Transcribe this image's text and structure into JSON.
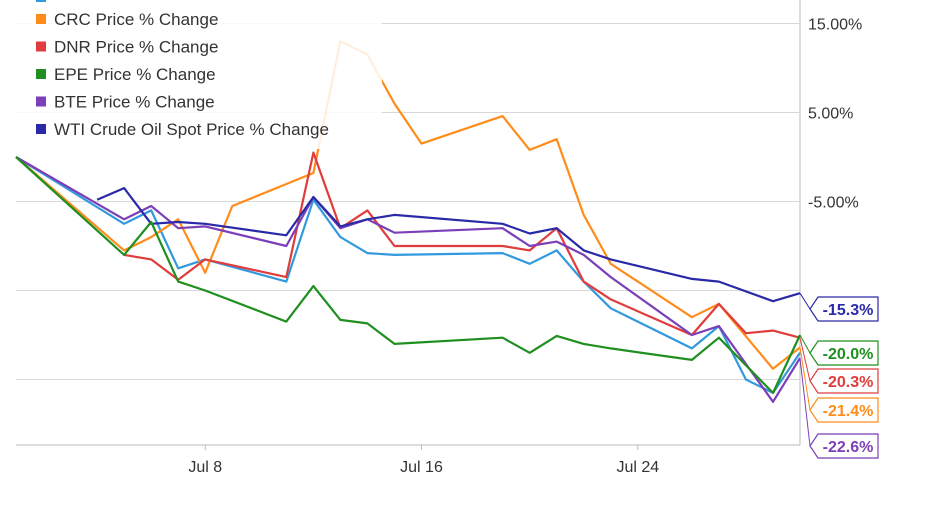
{
  "chart_data": {
    "type": "line",
    "x_ticks": [
      "Jul 8",
      "Jul 16",
      "Jul 24"
    ],
    "y_ticks": [
      "15.00%",
      "5.00%",
      "-5.00%"
    ],
    "ylim": [
      -30,
      20
    ],
    "grid": true,
    "legend_placement": "top-left",
    "series": [
      {
        "name": "CRC Price % Change",
        "color": "#ff8c1a",
        "end_label": "-21.4%",
        "points": [
          [
            0,
            0
          ],
          [
            4,
            -10.5
          ],
          [
            5,
            -9
          ],
          [
            6,
            -7
          ],
          [
            7,
            -13
          ],
          [
            8,
            -5.5
          ],
          [
            11,
            -1.8
          ],
          [
            12,
            13
          ],
          [
            13,
            11.5
          ],
          [
            14,
            6
          ],
          [
            15,
            1.5
          ],
          [
            18,
            4.6
          ],
          [
            19,
            0.8
          ],
          [
            20,
            2
          ],
          [
            21,
            -6.5
          ],
          [
            22,
            -12
          ],
          [
            25,
            -18
          ],
          [
            26,
            -16.5
          ],
          [
            28,
            -23.8
          ],
          [
            29,
            -21.4
          ]
        ]
      },
      {
        "name": "DNR Price % Change",
        "color": "#e03c3c",
        "end_label": "-20.3%",
        "points": [
          [
            4,
            -11
          ],
          [
            5,
            -11.5
          ],
          [
            6,
            -13.8
          ],
          [
            7,
            -11.5
          ],
          [
            10,
            -13.5
          ],
          [
            11,
            0.5
          ],
          [
            12,
            -8
          ],
          [
            13,
            -6
          ],
          [
            14,
            -10
          ],
          [
            18,
            -10
          ],
          [
            19,
            -10.5
          ],
          [
            20,
            -8
          ],
          [
            21,
            -14
          ],
          [
            22,
            -16
          ],
          [
            25,
            -20
          ],
          [
            26,
            -16.5
          ],
          [
            27,
            -19.8
          ],
          [
            28,
            -19.5
          ],
          [
            29,
            -20.3
          ]
        ]
      },
      {
        "name": "EPE Price % Change",
        "color": "#1f8f1f",
        "end_label": "-20.0%",
        "points": [
          [
            0,
            0
          ],
          [
            4,
            -11
          ],
          [
            5,
            -7.3
          ],
          [
            6,
            -14
          ],
          [
            7,
            -15
          ],
          [
            10,
            -18.5
          ],
          [
            11,
            -14.5
          ],
          [
            12,
            -18.3
          ],
          [
            13,
            -18.7
          ],
          [
            14,
            -21
          ],
          [
            18,
            -20.3
          ],
          [
            19,
            -22
          ],
          [
            20,
            -20.1
          ],
          [
            21,
            -21
          ],
          [
            22,
            -21.5
          ],
          [
            25,
            -22.8
          ],
          [
            26,
            -20.3
          ],
          [
            28,
            -26.5
          ],
          [
            29,
            -20
          ]
        ]
      },
      {
        "name": "BTE Price % Change",
        "color": "#7b3fb8",
        "end_label": "-22.6%",
        "points": [
          [
            0,
            0
          ],
          [
            4,
            -7
          ],
          [
            5,
            -5.5
          ],
          [
            6,
            -8
          ],
          [
            7,
            -7.8
          ],
          [
            10,
            -10
          ],
          [
            11,
            -4.5
          ],
          [
            12,
            -8
          ],
          [
            13,
            -7
          ],
          [
            14,
            -8.5
          ],
          [
            18,
            -8
          ],
          [
            19,
            -10
          ],
          [
            20,
            -9.5
          ],
          [
            21,
            -11
          ],
          [
            22,
            -13.5
          ],
          [
            25,
            -20
          ],
          [
            26,
            -19
          ],
          [
            28,
            -27.5
          ],
          [
            29,
            -22.6
          ]
        ]
      },
      {
        "name": "WTI Crude Oil Spot Price % Change",
        "color": "#2a2aa8",
        "end_label": "-15.3%",
        "points": [
          [
            3,
            -4.8
          ],
          [
            4,
            -3.5
          ],
          [
            5,
            -7.5
          ],
          [
            6,
            -7.3
          ],
          [
            7,
            -7.5
          ],
          [
            10,
            -8.8
          ],
          [
            11,
            -4.5
          ],
          [
            12,
            -7.8
          ],
          [
            13,
            -7
          ],
          [
            14,
            -6.5
          ],
          [
            18,
            -7.5
          ],
          [
            19,
            -8.6
          ],
          [
            20,
            -8
          ],
          [
            21,
            -10.5
          ],
          [
            22,
            -11.5
          ],
          [
            25,
            -13.7
          ],
          [
            26,
            -14
          ],
          [
            28,
            -16.2
          ],
          [
            29,
            -15.3
          ]
        ]
      },
      {
        "name": "",
        "color": "#3399dd",
        "end_label": "",
        "points": [
          [
            0,
            0
          ],
          [
            4,
            -7.5
          ],
          [
            5,
            -6
          ],
          [
            6,
            -12.5
          ],
          [
            7,
            -11.5
          ],
          [
            10,
            -14
          ],
          [
            11,
            -4.8
          ],
          [
            12,
            -9
          ],
          [
            13,
            -10.8
          ],
          [
            14,
            -11
          ],
          [
            18,
            -10.8
          ],
          [
            19,
            -12
          ],
          [
            20,
            -10.5
          ],
          [
            21,
            -14
          ],
          [
            22,
            -17
          ],
          [
            25,
            -21.5
          ],
          [
            26,
            -19
          ],
          [
            27,
            -25
          ],
          [
            28,
            -26.5
          ],
          [
            29,
            -22
          ]
        ]
      }
    ],
    "legend": [
      {
        "label": "CRC Price % Change",
        "color": "#ff8c1a"
      },
      {
        "label": "DNR Price % Change",
        "color": "#e03c3c"
      },
      {
        "label": "EPE Price % Change",
        "color": "#1f8f1f"
      },
      {
        "label": "BTE Price % Change",
        "color": "#7b3fb8"
      },
      {
        "label": "WTI Crude Oil Spot Price % Change",
        "color": "#2a2aa8"
      }
    ]
  }
}
